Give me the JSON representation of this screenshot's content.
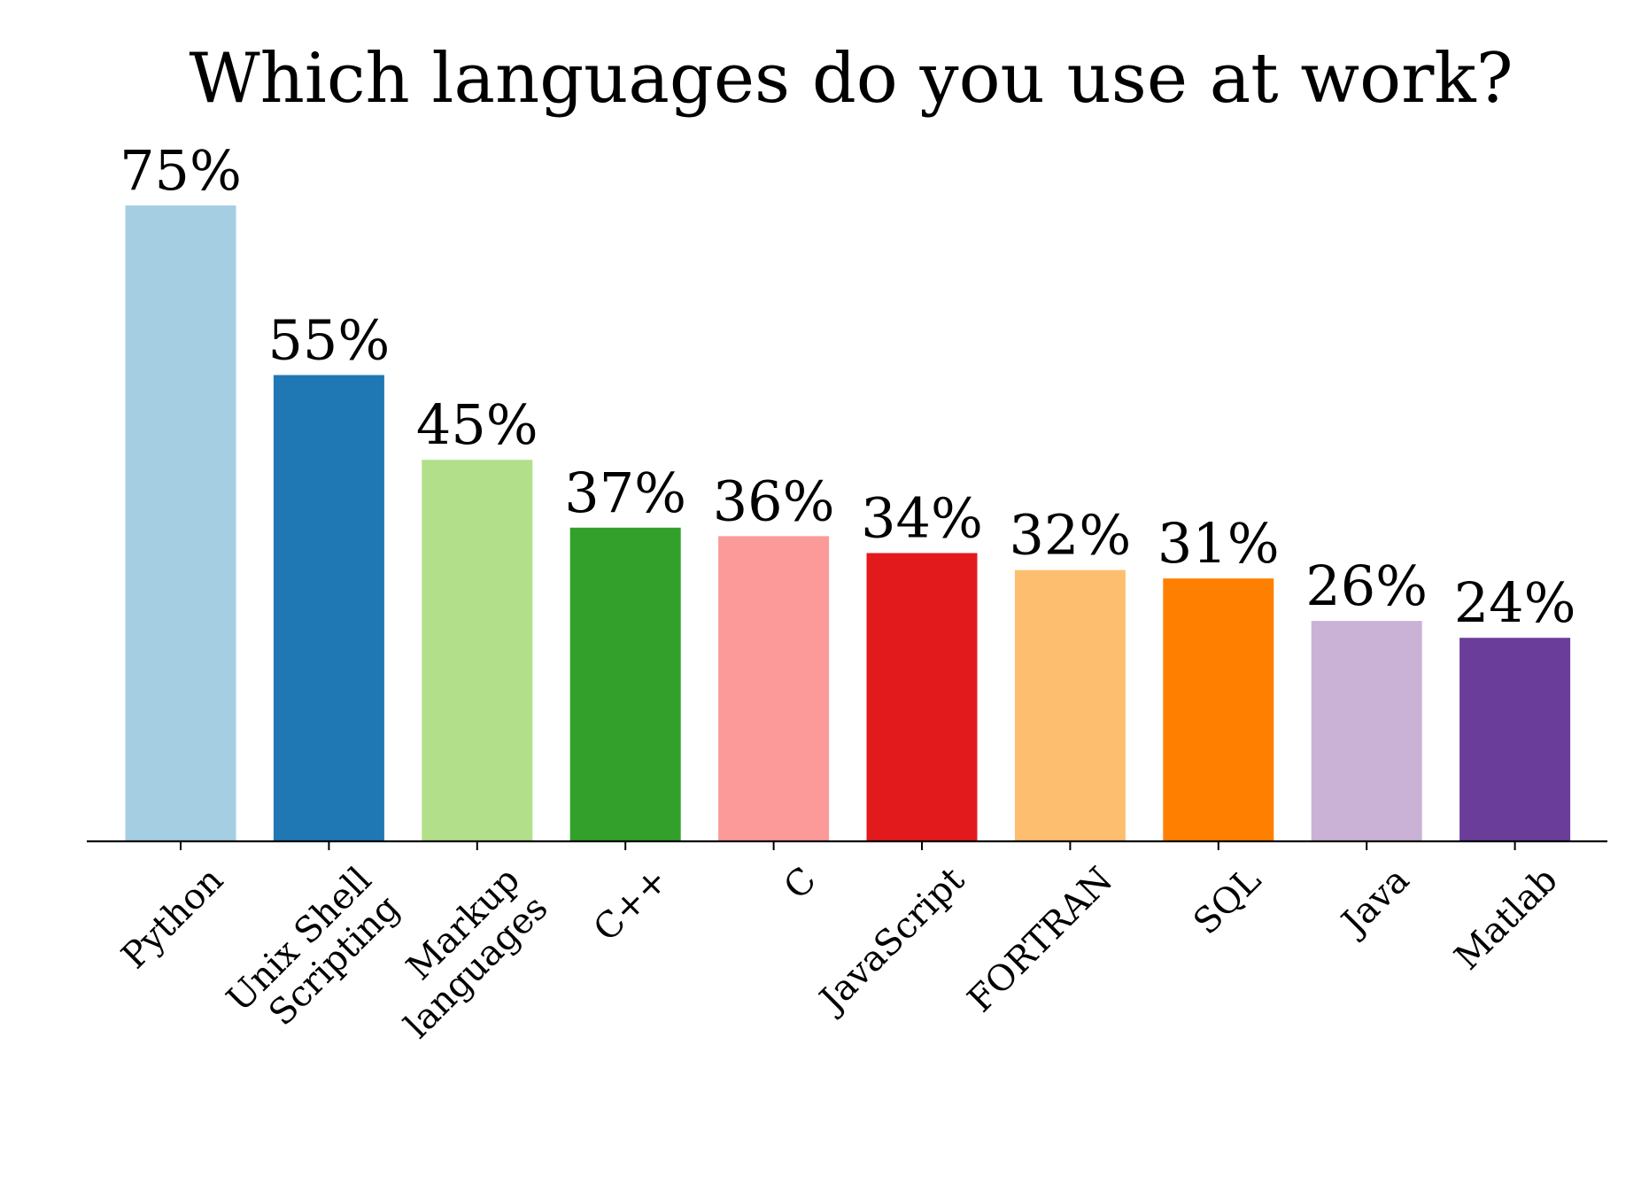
{
  "chart_data": {
    "type": "bar",
    "title": "Which languages do you use at work?",
    "xlabel": "",
    "ylabel": "",
    "ylim": [
      0,
      80
    ],
    "grid": false,
    "legend": "none",
    "categories": [
      [
        "Python"
      ],
      [
        "Unix Shell",
        "Scripting"
      ],
      [
        "Markup",
        "languages"
      ],
      [
        "C++"
      ],
      [
        "C"
      ],
      [
        "JavaScript"
      ],
      [
        "FORTRAN"
      ],
      [
        "SQL"
      ],
      [
        "Java"
      ],
      [
        "Matlab"
      ]
    ],
    "values": [
      75,
      55,
      45,
      37,
      36,
      34,
      32,
      31,
      26,
      24
    ],
    "value_labels": [
      "75%",
      "55%",
      "45%",
      "37%",
      "36%",
      "34%",
      "32%",
      "31%",
      "26%",
      "24%"
    ],
    "colors": [
      "#a6cee3",
      "#1f78b4",
      "#b2df8a",
      "#33a02c",
      "#fb9a99",
      "#e31a1c",
      "#fdbf6f",
      "#ff7f00",
      "#cab2d6",
      "#6a3d9a"
    ]
  }
}
